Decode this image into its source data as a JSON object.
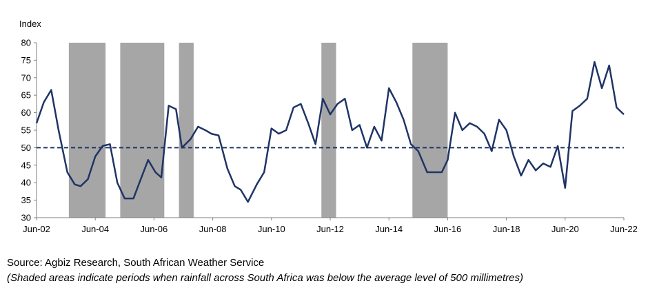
{
  "chart_data": {
    "type": "line",
    "ylabel": "Index",
    "ylim": [
      30,
      80
    ],
    "yticks": [
      30,
      35,
      40,
      45,
      50,
      55,
      60,
      65,
      70,
      75,
      80
    ],
    "xlim": [
      2002.5,
      2022.5
    ],
    "xticks": [
      {
        "label": "Jun-02",
        "x": 2002.5
      },
      {
        "label": "Jun-04",
        "x": 2004.5
      },
      {
        "label": "Jun-06",
        "x": 2006.5
      },
      {
        "label": "Jun-08",
        "x": 2008.5
      },
      {
        "label": "Jun-10",
        "x": 2010.5
      },
      {
        "label": "Jun-12",
        "x": 2012.5
      },
      {
        "label": "Jun-14",
        "x": 2014.5
      },
      {
        "label": "Jun-16",
        "x": 2016.5
      },
      {
        "label": "Jun-18",
        "x": 2018.5
      },
      {
        "label": "Jun-20",
        "x": 2020.5
      },
      {
        "label": "Jun-22",
        "x": 2022.5
      }
    ],
    "reference_line": 50,
    "shaded_periods": [
      [
        2003.6,
        2004.85
      ],
      [
        2005.35,
        2006.85
      ],
      [
        2007.35,
        2007.85
      ],
      [
        2012.2,
        2012.7
      ],
      [
        2015.3,
        2016.5
      ]
    ],
    "colors": {
      "line": "#1f3466",
      "shade": "#a6a6a6",
      "reference": "#1f3466",
      "grid": "#d9d9d9"
    },
    "grid": false,
    "series": [
      {
        "x": [
          2002.5,
          2002.75,
          2003.0,
          2003.25,
          2003.55,
          2003.8,
          2004.0,
          2004.25,
          2004.5,
          2004.75,
          2005.0,
          2005.25,
          2005.5,
          2005.8,
          2006.05,
          2006.3,
          2006.55,
          2006.75,
          2007.0,
          2007.25,
          2007.45,
          2007.75,
          2008.0,
          2008.25,
          2008.45,
          2008.7,
          2009.0,
          2009.25,
          2009.45,
          2009.7,
          2010.0,
          2010.25,
          2010.5,
          2010.75,
          2011.0,
          2011.25,
          2011.5,
          2011.75,
          2012.0,
          2012.25,
          2012.5,
          2012.75,
          2013.0,
          2013.25,
          2013.5,
          2013.75,
          2014.0,
          2014.25,
          2014.5,
          2014.75,
          2015.0,
          2015.25,
          2015.5,
          2015.8,
          2016.05,
          2016.3,
          2016.5,
          2016.75,
          2017.0,
          2017.25,
          2017.5,
          2017.75,
          2018.0,
          2018.25,
          2018.5,
          2018.75,
          2019.0,
          2019.25,
          2019.5,
          2019.75,
          2020.0,
          2020.25,
          2020.5,
          2020.75,
          2021.0,
          2021.25,
          2021.5,
          2021.75,
          2022.0,
          2022.25,
          2022.5
        ],
        "y": [
          57,
          63,
          66.5,
          55,
          43,
          39.5,
          39,
          41,
          47.5,
          50.5,
          51,
          40,
          35.5,
          35.5,
          41,
          46.5,
          43,
          41.5,
          62,
          61,
          50,
          52.5,
          56,
          55,
          54,
          53.5,
          44,
          39,
          38,
          34.5,
          39.5,
          43,
          55.5,
          54,
          55,
          61.5,
          62.5,
          57,
          51,
          64,
          59.5,
          62.5,
          64,
          55,
          56.5,
          50,
          56,
          52,
          67,
          63,
          58,
          51,
          49,
          43,
          43,
          43,
          46.5,
          60,
          55,
          57,
          56,
          54,
          49,
          58,
          55,
          47.5,
          42,
          46.5,
          43.5,
          45.5,
          44.5,
          50.5,
          38.5,
          60.5,
          62,
          64,
          74.5,
          67,
          73.5,
          61.5,
          59.5
        ]
      }
    ]
  },
  "footer": {
    "source": "Source: Agbiz Research, South African Weather Service",
    "note": "(Shaded areas indicate periods when rainfall across South Africa was below the average level of 500 millimetres)"
  }
}
